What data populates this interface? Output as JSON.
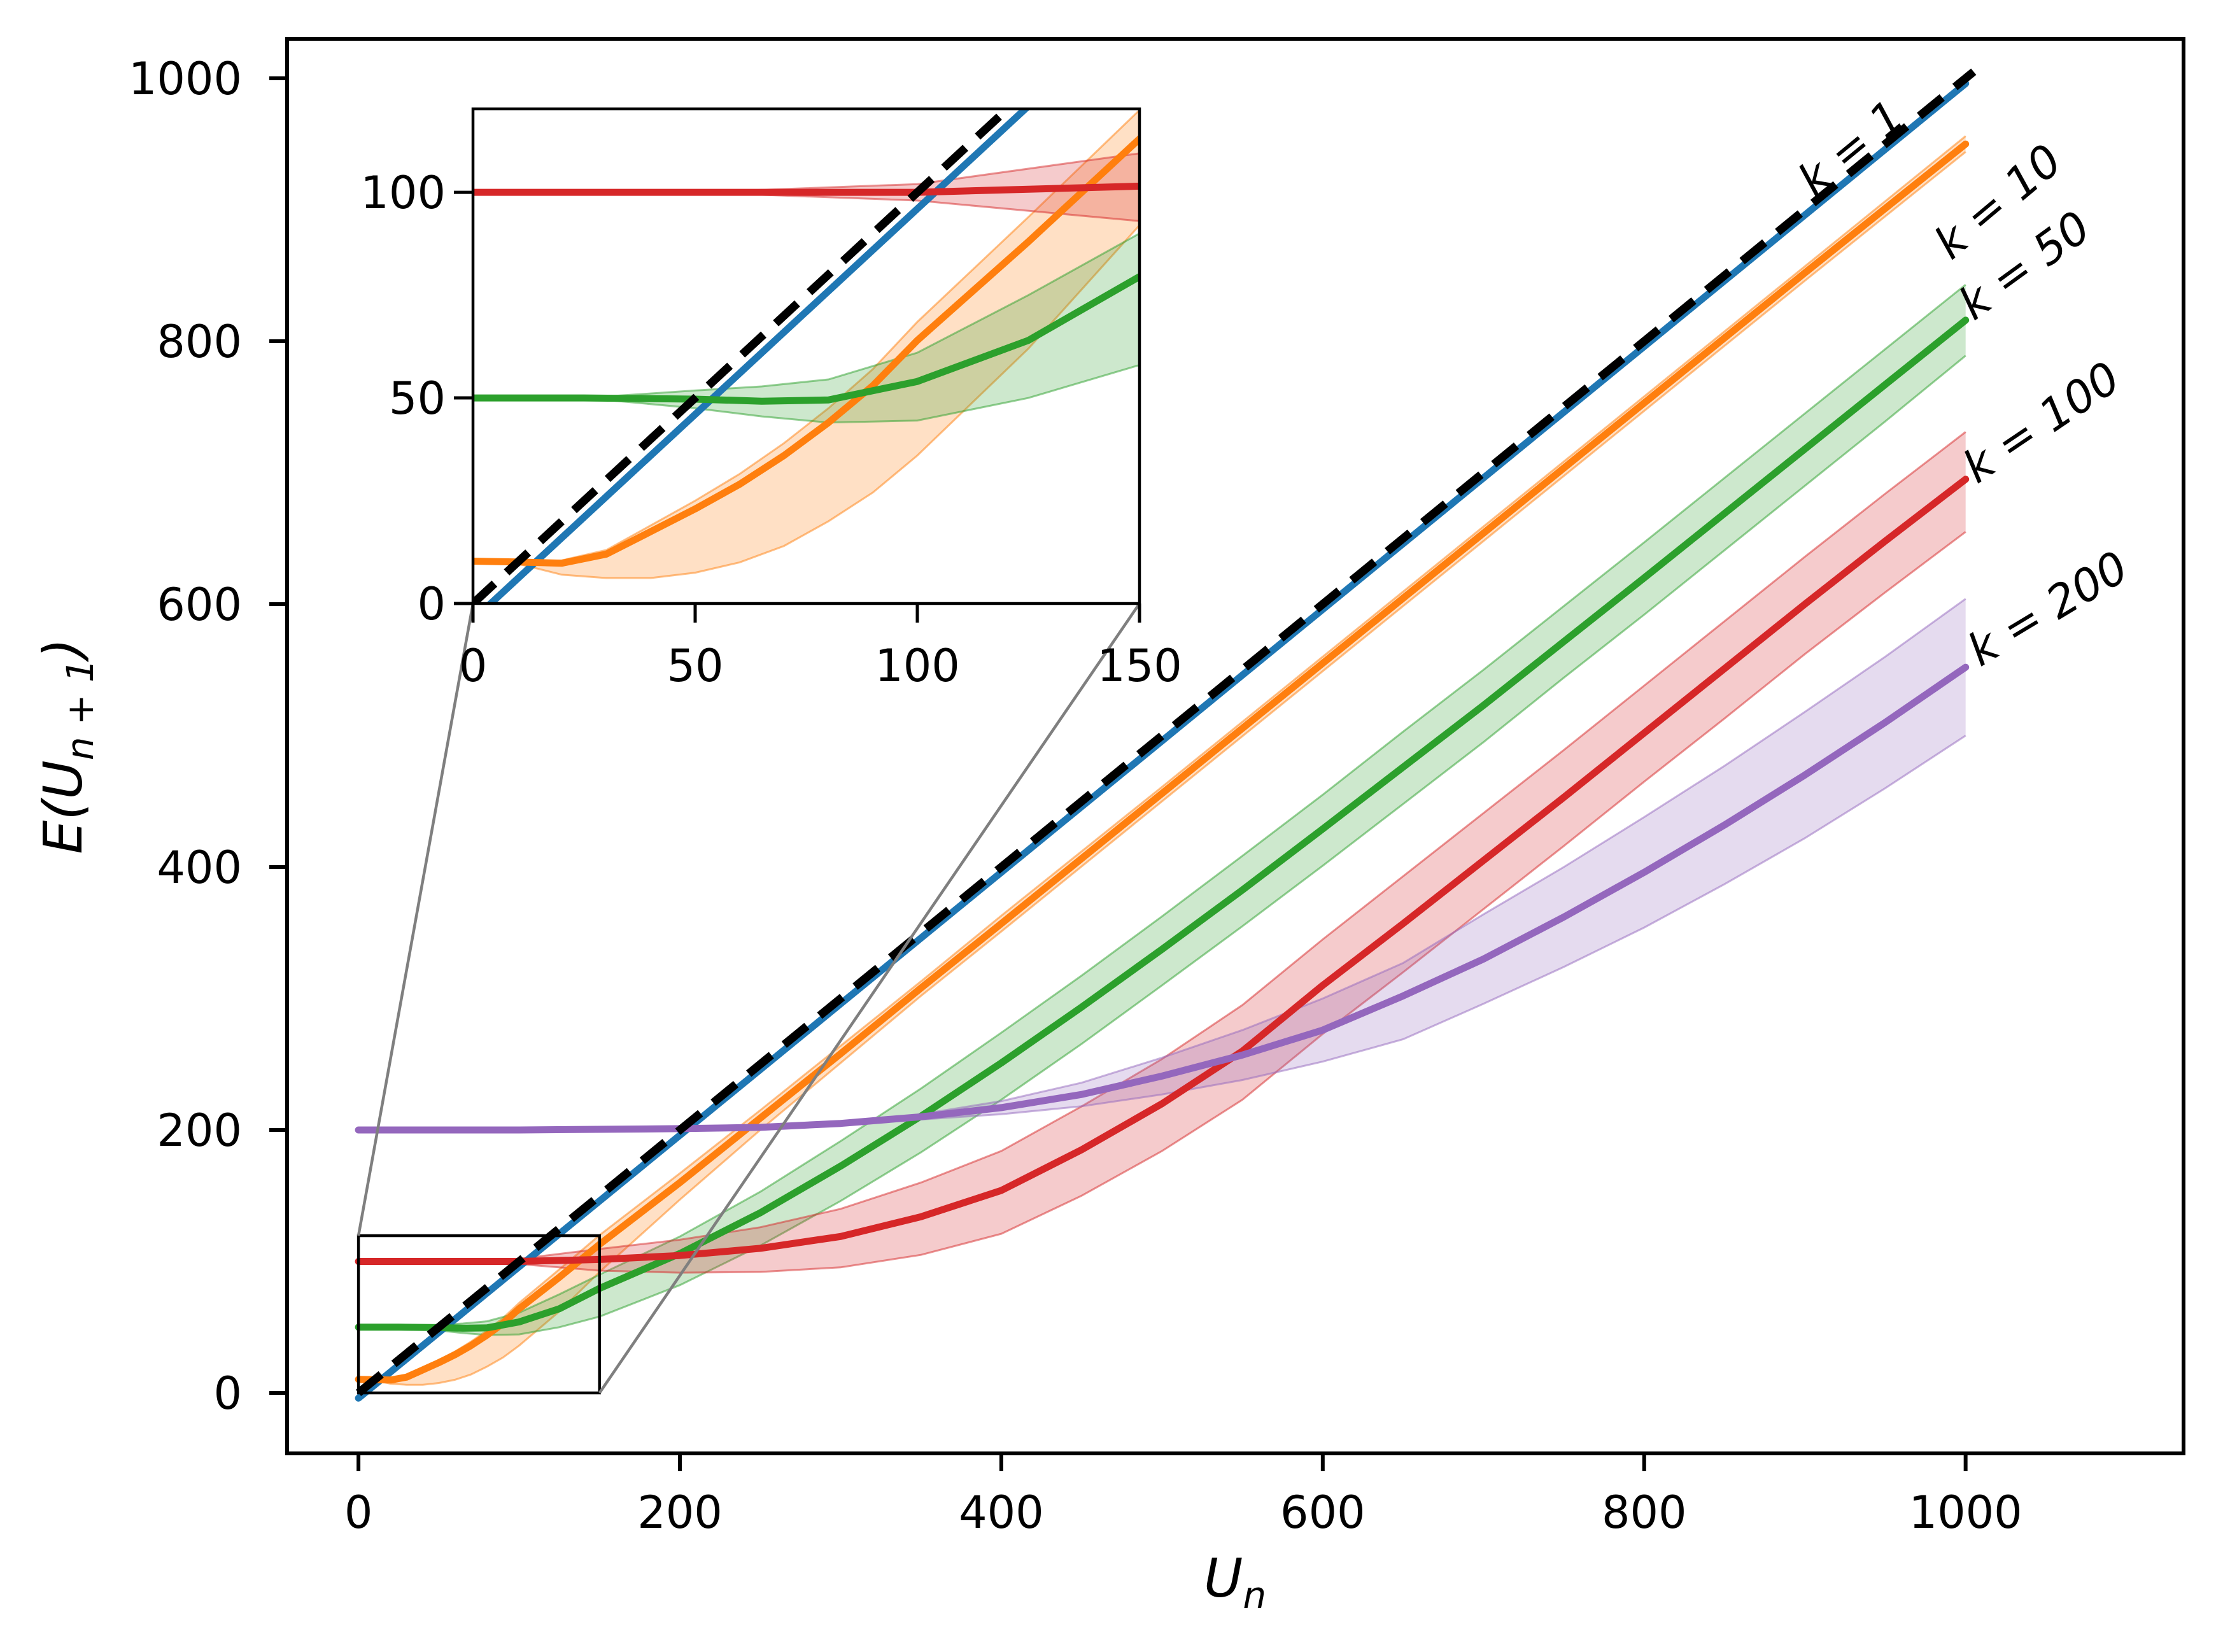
{
  "figure": {
    "background": "#ffffff"
  },
  "chart_data": {
    "type": "line",
    "title": "",
    "xlabel": {
      "base": "U",
      "sub": "n"
    },
    "ylabel": {
      "pre": "E(U",
      "sub": "n + 1",
      "post": ")"
    },
    "grid": false,
    "legend_position": "inline-end-labels",
    "main_axes": {
      "xlim": [
        -44.4,
        1135.6
      ],
      "ylim": [
        -46,
        1030
      ],
      "xticks": [
        0,
        200,
        400,
        600,
        800,
        1000
      ],
      "yticks": [
        0,
        200,
        400,
        600,
        800,
        1000
      ]
    },
    "inset_axes": {
      "xlim": [
        0,
        150
      ],
      "ylim": [
        0,
        120.3
      ],
      "xticks": [
        0,
        50,
        100,
        150
      ],
      "yticks": [
        0,
        50,
        100
      ]
    },
    "reference_line": {
      "name": "identity y = x",
      "color": "#000000",
      "style": "dashed",
      "x": [
        0,
        1005
      ],
      "y": [
        0,
        1005
      ]
    },
    "zoom_rect": {
      "x": [
        0,
        150
      ],
      "y": [
        0,
        119.6
      ]
    },
    "connector_color": "#7f7f7f",
    "series": [
      {
        "key": "k1",
        "label": "k = 1",
        "color": "#1f77b4",
        "x": [
          0,
          100,
          200,
          300,
          400,
          500,
          600,
          700,
          800,
          900,
          1000
        ],
        "y": [
          -4,
          96,
          196,
          296,
          396,
          496,
          596,
          696,
          796,
          896,
          996
        ],
        "label_anchor": [
          906,
          909
        ],
        "label_rotation": -39.4
      },
      {
        "key": "k10",
        "label": "k = 10",
        "color": "#ff7f0e",
        "x": [
          0,
          10,
          20,
          30,
          40,
          50,
          60,
          70,
          80,
          90,
          100,
          125,
          150,
          200,
          250,
          300,
          350,
          400,
          500,
          600,
          700,
          800,
          900,
          1000
        ],
        "y": [
          10.3,
          10.1,
          9.8,
          12,
          17.5,
          23,
          29,
          36,
          44,
          53,
          64,
          88,
          113,
          160,
          209,
          258,
          308,
          357,
          456,
          555,
          654,
          753,
          852,
          950
        ],
        "band_low": [
          10.3,
          9.7,
          7,
          6.2,
          6.2,
          7.5,
          10,
          14,
          20,
          27,
          36,
          62,
          92,
          147,
          200,
          251,
          302,
          351,
          450,
          549,
          648,
          747,
          846,
          944
        ],
        "band_high": [
          10.3,
          10.4,
          10.5,
          13,
          19,
          25,
          31.5,
          39,
          47.5,
          57,
          68.5,
          94,
          120,
          167,
          215,
          264,
          313,
          363,
          461,
          560,
          659,
          758,
          857,
          956
        ],
        "label_anchor": [
          991,
          861
        ],
        "label_rotation": -40
      },
      {
        "key": "k50",
        "label": "k = 50",
        "color": "#2ca02c",
        "x": [
          0,
          25,
          50,
          65,
          80,
          100,
          125,
          150,
          200,
          250,
          300,
          350,
          400,
          450,
          500,
          550,
          600,
          650,
          700,
          750,
          800,
          850,
          900,
          950,
          1000
        ],
        "y": [
          50,
          50,
          49.7,
          49.2,
          49.5,
          54,
          64,
          79.5,
          106,
          137,
          172.5,
          210.5,
          251,
          293.5,
          337.5,
          382.5,
          429,
          476,
          523,
          571.5,
          620,
          669,
          718,
          767,
          816
        ],
        "band_low": [
          50,
          50,
          47.5,
          45.5,
          44,
          44.5,
          50,
          58,
          82,
          112,
          146,
          183,
          223,
          265.5,
          310,
          355,
          401,
          448,
          495,
          544,
          592,
          641,
          690,
          739,
          789
        ],
        "band_high": [
          50,
          50,
          51.8,
          52.8,
          54.5,
          61,
          75,
          90,
          119,
          153,
          191.5,
          231.5,
          274,
          317.5,
          362.5,
          408.5,
          455,
          503,
          550,
          598.5,
          647,
          696,
          745,
          794,
          843
        ],
        "label_anchor": [
          1005,
          815
        ],
        "label_rotation": -36
      },
      {
        "key": "k100",
        "label": "k = 100",
        "color": "#d62728",
        "x": [
          0,
          50,
          100,
          150,
          200,
          250,
          300,
          350,
          400,
          450,
          500,
          550,
          600,
          650,
          700,
          750,
          800,
          850,
          900,
          950,
          1000
        ],
        "y": [
          100,
          100,
          100,
          101.5,
          104.5,
          110,
          119,
          134,
          154,
          185,
          220,
          260,
          310,
          357,
          405,
          453,
          502,
          551,
          600,
          648,
          695
        ],
        "band_low": [
          100,
          100,
          98,
          93,
          91.5,
          92,
          95.5,
          105,
          121,
          150,
          184,
          223,
          273,
          320,
          368,
          416,
          465,
          513,
          562,
          609,
          655
        ],
        "band_high": [
          100,
          100,
          102,
          109.5,
          116.5,
          126,
          140,
          160,
          184,
          218,
          254,
          295,
          345,
          393,
          441,
          489,
          538,
          587,
          636,
          684,
          731
        ],
        "label_anchor": [
          1007,
          691
        ],
        "label_rotation": -34
      },
      {
        "key": "k200",
        "label": "k = 200",
        "color": "#9467bd",
        "x": [
          0,
          100,
          200,
          250,
          300,
          350,
          400,
          450,
          500,
          550,
          600,
          650,
          700,
          750,
          800,
          850,
          900,
          950,
          1000
        ],
        "y": [
          200,
          200,
          201,
          202,
          205,
          210,
          217,
          227,
          241,
          257,
          276,
          302,
          330,
          362,
          396,
          432,
          470,
          510,
          552
        ],
        "band_low": [
          200,
          200,
          201,
          202,
          205,
          208,
          212,
          218,
          227,
          238,
          252,
          269,
          296,
          324,
          354,
          387,
          422,
          460,
          500
        ],
        "band_high": [
          200,
          200,
          201,
          202,
          205,
          212,
          222,
          236,
          255,
          276,
          300,
          327,
          364,
          400,
          438,
          477,
          518,
          560,
          604
        ],
        "label_anchor": [
          1009,
          552
        ],
        "label_rotation": -31
      }
    ]
  }
}
